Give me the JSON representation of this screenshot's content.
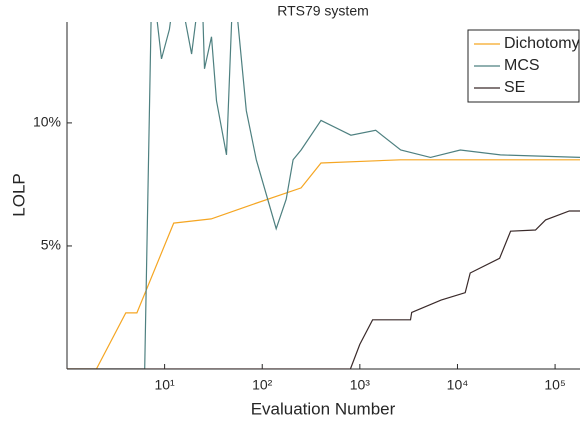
{
  "chart_data": {
    "type": "line",
    "title": "RTS79 system",
    "x_label": "Evaluation Number",
    "y_label": "LOLP",
    "xlog": true,
    "xlim": [
      1,
      180000
    ],
    "ylim": [
      0,
      14.1
    ],
    "xticks": [
      {
        "value": 10,
        "label": "10¹"
      },
      {
        "value": 100,
        "label": "10²"
      },
      {
        "value": 1000,
        "label": "10³"
      },
      {
        "value": 10000,
        "label": "10⁴"
      },
      {
        "value": 100000,
        "label": "10⁵"
      }
    ],
    "yticks": [
      {
        "value": 5,
        "label": "5%"
      },
      {
        "value": 10,
        "label": "10%"
      }
    ],
    "legend": "upper right",
    "series": [
      {
        "name": "Dichotomy",
        "color": "#f5a623",
        "x": [
          1,
          2,
          4,
          5.2,
          12.4,
          30,
          77,
          250,
          400,
          2600,
          180000
        ],
        "values": [
          0,
          0,
          2.28,
          2.28,
          5.93,
          6.1,
          6.67,
          7.36,
          8.37,
          8.5,
          8.5
        ]
      },
      {
        "name": "MCS",
        "color": "#4e8080",
        "x": [
          1,
          6.25,
          7.4,
          9.3,
          11.2,
          13.3,
          18.9,
          23.9,
          25.6,
          30.2,
          34,
          43,
          50.6,
          68.7,
          87,
          139,
          176,
          207,
          250,
          400,
          809,
          1455,
          2620,
          5300,
          10700,
          27500,
          180000
        ],
        "values": [
          0,
          0,
          16,
          12.6,
          13.8,
          16,
          12.8,
          16,
          12.2,
          13.5,
          10.9,
          8.7,
          16,
          10.5,
          8.5,
          5.7,
          6.9,
          8.5,
          8.9,
          10.1,
          9.5,
          9.7,
          8.9,
          8.6,
          8.9,
          8.7,
          8.6
        ]
      },
      {
        "name": "SE",
        "color": "#3a2a2a",
        "x": [
          1,
          800,
          1000,
          1350,
          3300,
          3400,
          6800,
          12000,
          13500,
          27000,
          35000,
          63000,
          80000,
          140000,
          180000
        ],
        "values": [
          0,
          0,
          1.0,
          2.0,
          2.0,
          2.3,
          2.8,
          3.1,
          3.9,
          4.5,
          5.6,
          5.65,
          6.06,
          6.42,
          6.42
        ]
      }
    ]
  }
}
